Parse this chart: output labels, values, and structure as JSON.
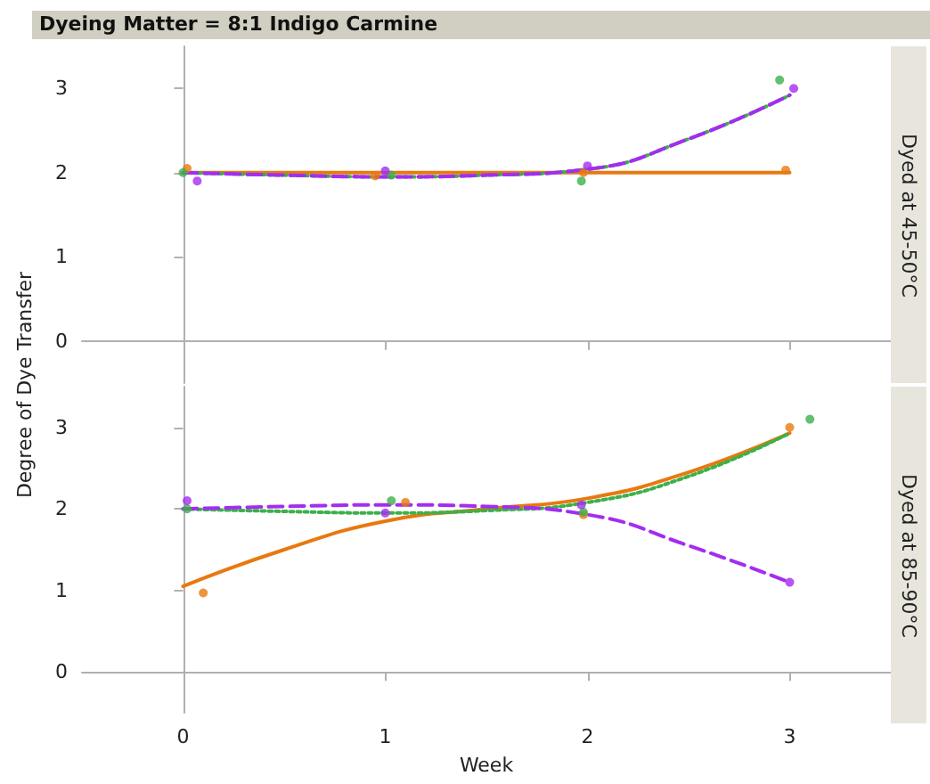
{
  "chart_data": [
    {
      "type": "scatter",
      "title": "Dyeing Matter = 8:1 Indigo Carmine",
      "subtitle": "Dyed at 45-50°C",
      "ylabel": "Degree of Dye Transfer",
      "xlim": [
        -0.5,
        3.5
      ],
      "xticks": [
        0,
        1,
        2,
        3
      ],
      "ylim": [
        -0.5,
        3.5
      ],
      "yticks": [
        0,
        1,
        2,
        3
      ],
      "tick_labels": "y",
      "marker": "circle",
      "series": [
        {
          "color": "#e8790f",
          "x": [
            0.02,
            0.95,
            1.98,
            2.98
          ],
          "values": [
            2.05,
            1.96,
            2.0,
            2.03
          ]
        },
        {
          "color": "#3cb04a",
          "x": [
            0.0,
            1.03,
            1.97,
            2.95
          ],
          "values": [
            2.0,
            1.97,
            1.9,
            3.1
          ]
        },
        {
          "color": "#a42cf2",
          "x": [
            0.07,
            1.0,
            2.0,
            3.02
          ],
          "values": [
            1.9,
            2.02,
            2.08,
            3.0
          ]
        },
        {
          "type": "line",
          "color": "#e8790f",
          "line_style": "solid",
          "marker": "none",
          "x": [
            0,
            1,
            2,
            3
          ],
          "values": [
            2.0,
            2.0,
            2.0,
            2.0
          ]
        },
        {
          "type": "line",
          "color": "#3cb04a",
          "line_style": "dotted",
          "marker": "none",
          "x": [
            0,
            0.5,
            1,
            1.5,
            2,
            2.5,
            3
          ],
          "values": [
            2.0,
            1.97,
            1.95,
            1.97,
            2.04,
            2.4,
            2.92
          ]
        },
        {
          "type": "line",
          "color": "#a42cf2",
          "line_style": "dashed",
          "marker": "none",
          "x": [
            0,
            0.5,
            1,
            1.5,
            2,
            2.5,
            3
          ],
          "values": [
            2.0,
            1.97,
            1.95,
            1.97,
            2.04,
            2.4,
            2.92
          ]
        }
      ]
    },
    {
      "type": "scatter",
      "subtitle": "Dyed at 85-90°C",
      "xlabel": "Week",
      "xlim": [
        -0.5,
        3.5
      ],
      "xticks": [
        0,
        1,
        2,
        3
      ],
      "ylim": [
        -0.5,
        3.5
      ],
      "yticks": [
        0,
        1,
        2,
        3
      ],
      "marker": "circle",
      "series": [
        {
          "color": "#e8790f",
          "x": [
            0.1,
            1.1,
            1.98,
            3.0
          ],
          "values": [
            0.97,
            2.08,
            1.93,
            3.0
          ]
        },
        {
          "color": "#3cb04a",
          "x": [
            0.02,
            1.03,
            1.98,
            3.1
          ],
          "values": [
            2.0,
            2.1,
            1.96,
            3.1
          ]
        },
        {
          "color": "#a42cf2",
          "x": [
            0.02,
            1.0,
            1.97,
            3.0
          ],
          "values": [
            2.1,
            1.95,
            2.05,
            1.1
          ]
        },
        {
          "type": "line",
          "color": "#e8790f",
          "line_style": "solid",
          "marker": "none",
          "x": [
            0,
            0.5,
            1,
            1.5,
            2,
            2.5,
            3
          ],
          "values": [
            1.05,
            1.5,
            1.85,
            2.0,
            2.13,
            2.45,
            2.93
          ]
        },
        {
          "type": "line",
          "color": "#3cb04a",
          "line_style": "dotted",
          "marker": "none",
          "x": [
            0,
            0.5,
            1,
            1.5,
            2,
            2.5,
            3
          ],
          "values": [
            2.0,
            1.97,
            1.95,
            1.98,
            2.08,
            2.4,
            2.93
          ]
        },
        {
          "type": "line",
          "color": "#a42cf2",
          "line_style": "dashed",
          "marker": "none",
          "x": [
            0,
            0.5,
            1,
            1.5,
            2,
            2.5,
            3
          ],
          "values": [
            2.0,
            2.03,
            2.05,
            2.03,
            1.93,
            1.55,
            1.1
          ]
        }
      ]
    }
  ]
}
